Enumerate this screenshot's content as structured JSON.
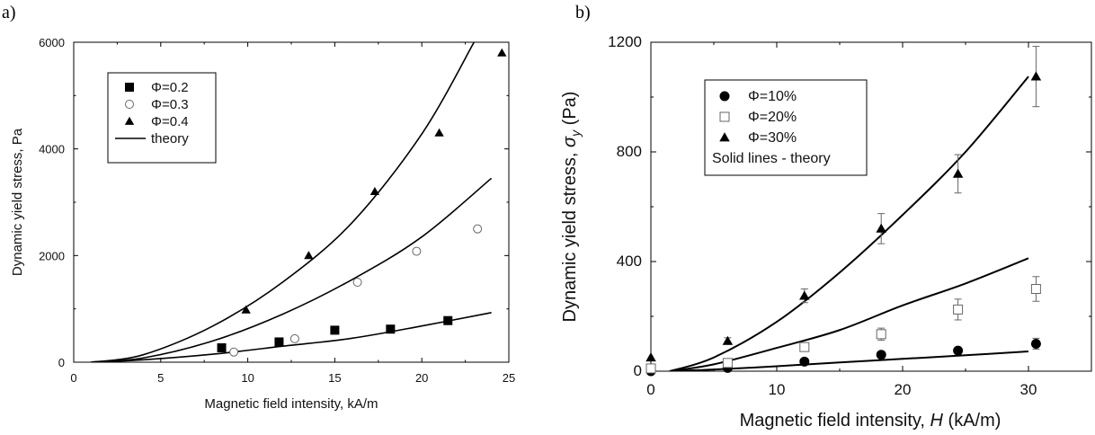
{
  "chart_data": [
    {
      "panel_label": "a)",
      "type": "scatter",
      "xlabel": "Magnetic field intensity, kA/m",
      "ylabel": "Dynamic yield stress, Pa",
      "xlim": [
        0,
        25
      ],
      "ylim": [
        0,
        6000
      ],
      "xticks": [
        "0",
        "5",
        "10",
        "15",
        "20",
        "25"
      ],
      "yticks": [
        "0",
        "2000",
        "4000",
        "6000"
      ],
      "legend_placement": "top-left",
      "series": [
        {
          "name": "Φ=0.2",
          "marker": "filled-square",
          "x": [
            8.5,
            11.8,
            15.0,
            18.2,
            21.5
          ],
          "y": [
            270,
            380,
            600,
            620,
            780
          ]
        },
        {
          "name": "Φ=0.3",
          "marker": "open-circle",
          "x": [
            9.2,
            12.7,
            16.3,
            19.7,
            23.2
          ],
          "y": [
            190,
            440,
            1500,
            2080,
            2500
          ]
        },
        {
          "name": "Φ=0.4",
          "marker": "filled-triangle",
          "x": [
            9.9,
            13.5,
            17.3,
            21.0,
            24.6
          ],
          "y": [
            980,
            2000,
            3200,
            4300,
            5800
          ]
        }
      ],
      "theory": {
        "name": "theory",
        "curves": [
          {
            "x": [
              1,
              4,
              8,
              12,
              16,
              20,
              24
            ],
            "y": [
              0,
              45,
              150,
              300,
              450,
              680,
              930
            ]
          },
          {
            "x": [
              1,
              4,
              8,
              12,
              16,
              20,
              24
            ],
            "y": [
              0,
              80,
              400,
              900,
              1550,
              2350,
              3450
            ]
          },
          {
            "x": [
              1,
              4,
              8,
              12,
              16,
              20,
              23
            ],
            "y": [
              0,
              140,
              680,
              1500,
              2620,
              4280,
              6000
            ]
          }
        ]
      }
    },
    {
      "panel_label": "b)",
      "type": "scatter",
      "xlabel": "Magnetic field intensity, H (kA/m)",
      "xlabel_main": "Magnetic field intensity, ",
      "xlabel_var": "H",
      "xlabel_unit": " (kA/m)",
      "ylabel": "Dynamic yield stress, σy (Pa)",
      "ylabel_main": "Dynamic yield stress, ",
      "ylabel_sym": "σ",
      "ylabel_sub": "y",
      "ylabel_unit": " (Pa)",
      "xlim": [
        0,
        35
      ],
      "ylim": [
        0,
        1200
      ],
      "xticks": [
        "0",
        "10",
        "20",
        "30"
      ],
      "yticks": [
        "0",
        "400",
        "800",
        "1200"
      ],
      "legend_placement": "top-left",
      "legend_note": "Solid lines - theory",
      "series": [
        {
          "name": "Φ=10%",
          "marker": "filled-circle",
          "x": [
            0,
            6.1,
            12.2,
            18.3,
            24.4,
            30.6
          ],
          "y": [
            0,
            12,
            35,
            60,
            75,
            100
          ],
          "err": [
            0,
            0,
            0,
            10,
            12,
            20
          ]
        },
        {
          "name": "Φ=20%",
          "marker": "open-square",
          "x": [
            0,
            6.1,
            12.2,
            18.3,
            24.4,
            30.6
          ],
          "y": [
            10,
            30,
            88,
            135,
            225,
            300
          ],
          "err": [
            0,
            10,
            12,
            22,
            38,
            45
          ]
        },
        {
          "name": "Φ=30%",
          "marker": "filled-triangle",
          "x": [
            0,
            6.1,
            12.2,
            18.3,
            24.4,
            30.6
          ],
          "y": [
            50,
            110,
            275,
            520,
            720,
            1075
          ],
          "err": [
            0,
            12,
            25,
            55,
            70,
            110
          ]
        }
      ],
      "theory": {
        "name": "Solid lines - theory",
        "curves": [
          {
            "x": [
              1.5,
              5,
              10,
              15,
              20,
              25,
              30
            ],
            "y": [
              0,
              6,
              18,
              32,
              45,
              58,
              72
            ]
          },
          {
            "x": [
              1.5,
              5,
              10,
              15,
              20,
              25,
              30
            ],
            "y": [
              0,
              25,
              85,
              150,
              240,
              320,
              412
            ]
          },
          {
            "x": [
              1.5,
              5,
              10,
              15,
              20,
              25,
              30
            ],
            "y": [
              0,
              50,
              180,
              360,
              570,
              800,
              1075
            ]
          }
        ]
      }
    }
  ]
}
